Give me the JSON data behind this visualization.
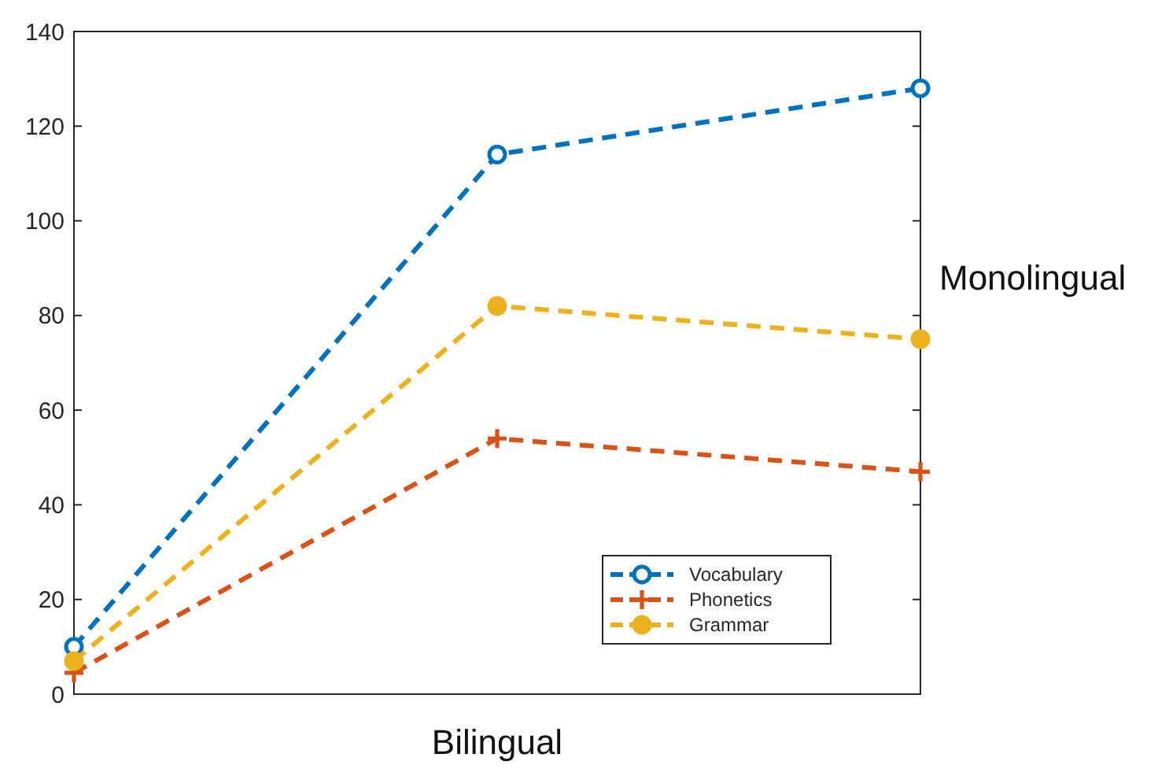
{
  "chart_data": {
    "type": "line",
    "categories": [
      null,
      null,
      null
    ],
    "ylim": [
      0,
      140
    ],
    "yticks": [
      0,
      20,
      40,
      60,
      80,
      100,
      120,
      140
    ],
    "grid": false,
    "legend": "bottom right",
    "line_style": "dashed",
    "annotations": [
      "Bilingual",
      "Monolingual"
    ],
    "series": [
      {
        "name": "Vocabulary",
        "color": "#0072bd",
        "marker": "circle",
        "values": [
          10,
          114,
          128
        ]
      },
      {
        "name": "Phonetics",
        "color": "#d95319",
        "marker": "cross",
        "values": [
          4.5,
          54,
          47
        ]
      },
      {
        "name": "Grammar",
        "color": "#edb120",
        "marker": "circle",
        "values": [
          7,
          82,
          75
        ]
      }
    ]
  }
}
